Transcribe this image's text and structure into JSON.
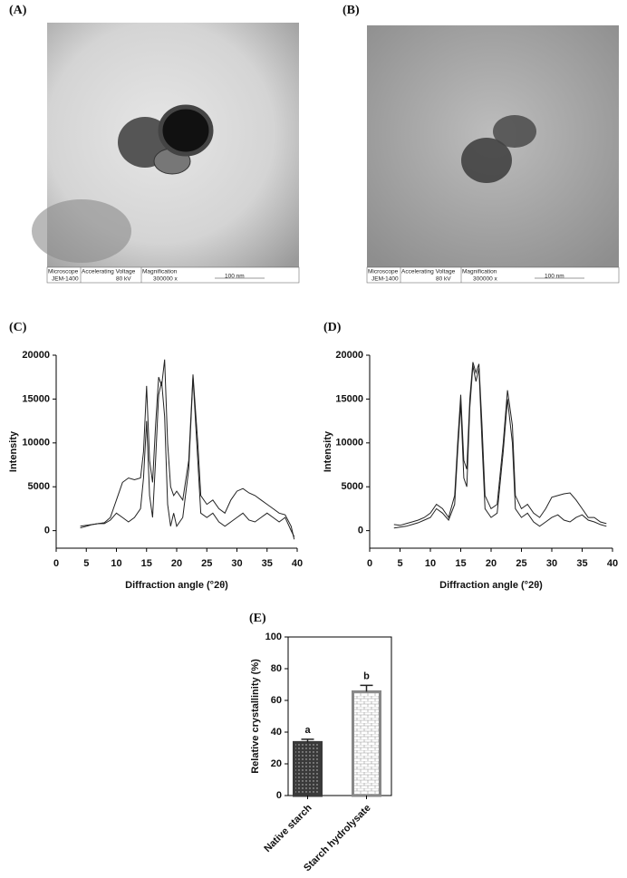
{
  "images": [
    {
      "label": "(A)",
      "info": [
        "Microscope",
        "Accelerating Voltage",
        "Magnification",
        "JEM-1400",
        "80 kV",
        "300000 x",
        "100 nm"
      ]
    },
    {
      "label": "(B)",
      "info": [
        "Microscope",
        "Accelerating Voltage",
        "Magnification",
        "JEM-1400",
        "80 kV",
        "300000 x",
        "100 nm"
      ]
    }
  ],
  "chart_data": [
    {
      "type": "line",
      "title": "(C)",
      "xlabel": "Diffraction angle (°2θ)",
      "ylabel": "Intensity",
      "x": [
        4,
        5,
        6,
        7,
        8,
        9,
        10,
        11,
        12,
        13,
        14,
        14.5,
        15,
        15.5,
        16,
        16.5,
        17,
        17.5,
        18,
        18.5,
        19,
        19.5,
        20,
        21,
        22,
        22.7,
        23.5,
        24,
        25,
        26,
        27,
        28,
        29,
        30,
        31,
        32,
        33,
        34,
        35,
        36,
        37,
        38,
        39,
        39.5
      ],
      "series": [
        {
          "color": "#222222",
          "values": [
            500,
            600,
            700,
            800,
            900,
            1500,
            3500,
            5500,
            6000,
            5800,
            6000,
            9000,
            16500,
            8000,
            5500,
            12000,
            17500,
            16500,
            19500,
            10000,
            5000,
            4000,
            4500,
            3500,
            8000,
            17800,
            10000,
            4000,
            3000,
            3500,
            2500,
            2000,
            3500,
            4500,
            4800,
            4300,
            4000,
            3500,
            3000,
            2500,
            2000,
            1800,
            500,
            -1000
          ]
        },
        {
          "color": "#222222",
          "values": [
            300,
            500,
            700,
            800,
            800,
            1200,
            2000,
            1500,
            1000,
            1500,
            2500,
            6000,
            12500,
            4000,
            1500,
            8000,
            15500,
            17000,
            13000,
            3000,
            500,
            2000,
            500,
            1500,
            7000,
            17500,
            8000,
            2000,
            1500,
            2000,
            1000,
            500,
            1000,
            1500,
            2000,
            1200,
            1000,
            1500,
            2000,
            1500,
            1000,
            1500,
            0,
            -700
          ]
        }
      ],
      "xlim": [
        0,
        40
      ],
      "xticks": [
        0,
        5,
        10,
        15,
        20,
        25,
        30,
        35,
        40
      ],
      "ylim": [
        -2000,
        20000
      ],
      "yticks": [
        0,
        5000,
        10000,
        15000,
        20000
      ]
    },
    {
      "type": "line",
      "title": "(D)",
      "xlabel": "Diffraction angle (°2θ)",
      "ylabel": "Intensity",
      "x": [
        4,
        5,
        6,
        7,
        8,
        9,
        10,
        11,
        12,
        13,
        14,
        14.5,
        15,
        15.5,
        16,
        16.5,
        17,
        17.5,
        18,
        18.5,
        19,
        20,
        21,
        22,
        22.7,
        23.5,
        24,
        25,
        26,
        27,
        28,
        29,
        30,
        31,
        32,
        33,
        34,
        35,
        36,
        37,
        38,
        39
      ],
      "series": [
        {
          "color": "#222222",
          "values": [
            700,
            600,
            800,
            1000,
            1200,
            1500,
            2000,
            3000,
            2500,
            1500,
            4000,
            10000,
            15500,
            8000,
            7000,
            15000,
            19200,
            18000,
            19000,
            12000,
            4000,
            2500,
            3000,
            10000,
            16000,
            12000,
            4000,
            2500,
            3000,
            2000,
            1500,
            2500,
            3800,
            4000,
            4200,
            4300,
            3500,
            2500,
            1500,
            1500,
            1000,
            800
          ]
        },
        {
          "color": "#222222",
          "values": [
            300,
            400,
            500,
            700,
            900,
            1200,
            1500,
            2500,
            2000,
            1200,
            3000,
            9000,
            14500,
            6000,
            5000,
            14000,
            18800,
            17000,
            18500,
            10000,
            2500,
            1500,
            2000,
            9000,
            15000,
            10000,
            2500,
            1500,
            2000,
            1000,
            500,
            1000,
            1500,
            1800,
            1200,
            1000,
            1500,
            1800,
            1200,
            1000,
            700,
            500
          ]
        }
      ],
      "xlim": [
        0,
        40
      ],
      "xticks": [
        0,
        5,
        10,
        15,
        20,
        25,
        30,
        35,
        40
      ],
      "ylim": [
        -2000,
        20000
      ],
      "yticks": [
        0,
        5000,
        10000,
        15000,
        20000
      ]
    },
    {
      "type": "bar",
      "title": "(E)",
      "ylabel": "Relative crystallinity (%)",
      "categories": [
        "Native starch",
        "Starch hydrolysate"
      ],
      "values": [
        33.5,
        65.5
      ],
      "errors": [
        2,
        4
      ],
      "annotations": [
        "a",
        "b"
      ],
      "colors": [
        "#3a3a3a",
        "#d8d8d8"
      ],
      "ylim": [
        0,
        100
      ],
      "yticks": [
        0,
        20,
        40,
        60,
        80,
        100
      ]
    }
  ]
}
